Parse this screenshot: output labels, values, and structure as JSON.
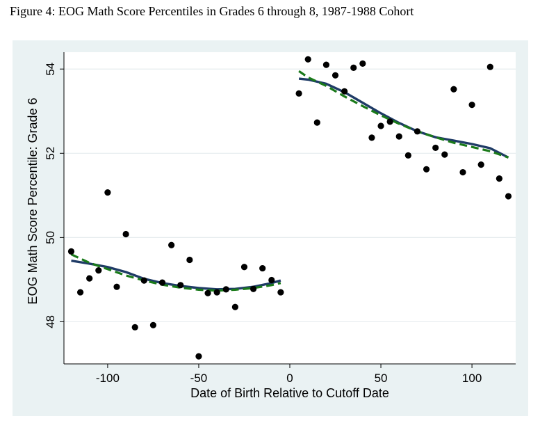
{
  "figure": {
    "title": "Figure 4: EOG Math Score Percentiles in Grades 6 through 8, 1987-1988 Cohort"
  },
  "chart_data": {
    "type": "scatter",
    "xlabel": "Date of Birth Relative to Cutoff Date",
    "ylabel": "EOG Math Score Percentile: Grade 6",
    "xlim": [
      -124,
      124
    ],
    "ylim": [
      47.0,
      54.4
    ],
    "xticks": [
      -100,
      -50,
      0,
      50,
      100
    ],
    "yticks": [
      48,
      50,
      52,
      54
    ],
    "grid": "horizontal",
    "colors": {
      "points": "#000000",
      "solid_fit": "#1f3b66",
      "dashed_fit": "#1a7a1a",
      "background": "#eaf2f3",
      "plot_area": "#ffffff"
    },
    "points": [
      {
        "x": -120,
        "y": 49.67
      },
      {
        "x": -115,
        "y": 48.7
      },
      {
        "x": -110,
        "y": 49.03
      },
      {
        "x": -105,
        "y": 49.22
      },
      {
        "x": -100,
        "y": 51.07
      },
      {
        "x": -95,
        "y": 48.83
      },
      {
        "x": -90,
        "y": 50.08
      },
      {
        "x": -85,
        "y": 47.87
      },
      {
        "x": -80,
        "y": 48.98
      },
      {
        "x": -75,
        "y": 47.92
      },
      {
        "x": -70,
        "y": 48.93
      },
      {
        "x": -65,
        "y": 49.82
      },
      {
        "x": -60,
        "y": 48.87
      },
      {
        "x": -55,
        "y": 49.47
      },
      {
        "x": -50,
        "y": 47.18
      },
      {
        "x": -45,
        "y": 48.68
      },
      {
        "x": -40,
        "y": 48.7
      },
      {
        "x": -35,
        "y": 48.77
      },
      {
        "x": -30,
        "y": 48.35
      },
      {
        "x": -25,
        "y": 49.3
      },
      {
        "x": -20,
        "y": 48.78
      },
      {
        "x": -15,
        "y": 49.27
      },
      {
        "x": -10,
        "y": 48.99
      },
      {
        "x": -5,
        "y": 48.7
      },
      {
        "x": 5,
        "y": 53.42
      },
      {
        "x": 10,
        "y": 54.23
      },
      {
        "x": 15,
        "y": 52.73
      },
      {
        "x": 20,
        "y": 54.1
      },
      {
        "x": 25,
        "y": 53.85
      },
      {
        "x": 30,
        "y": 53.47
      },
      {
        "x": 35,
        "y": 54.03
      },
      {
        "x": 40,
        "y": 54.13
      },
      {
        "x": 45,
        "y": 52.37
      },
      {
        "x": 50,
        "y": 52.65
      },
      {
        "x": 55,
        "y": 52.75
      },
      {
        "x": 60,
        "y": 52.4
      },
      {
        "x": 65,
        "y": 51.95
      },
      {
        "x": 70,
        "y": 52.52
      },
      {
        "x": 75,
        "y": 51.62
      },
      {
        "x": 80,
        "y": 52.13
      },
      {
        "x": 85,
        "y": 51.97
      },
      {
        "x": 90,
        "y": 53.52
      },
      {
        "x": 95,
        "y": 51.55
      },
      {
        "x": 100,
        "y": 53.15
      },
      {
        "x": 105,
        "y": 51.73
      },
      {
        "x": 110,
        "y": 54.05
      },
      {
        "x": 115,
        "y": 51.4
      },
      {
        "x": 120,
        "y": 50.98
      }
    ],
    "fits": [
      {
        "style": "solid",
        "segment": "left",
        "x": [
          -120,
          -110,
          -100,
          -90,
          -80,
          -70,
          -60,
          -50,
          -40,
          -30,
          -20,
          -10,
          -5
        ],
        "y": [
          49.45,
          49.38,
          49.3,
          49.18,
          49.02,
          48.92,
          48.85,
          48.8,
          48.77,
          48.78,
          48.83,
          48.92,
          48.98
        ]
      },
      {
        "style": "dashed",
        "segment": "left",
        "x": [
          -120,
          -110,
          -100,
          -90,
          -80,
          -70,
          -60,
          -50,
          -40,
          -30,
          -20,
          -10,
          -5
        ],
        "y": [
          49.6,
          49.4,
          49.25,
          49.1,
          48.98,
          48.88,
          48.81,
          48.76,
          48.74,
          48.76,
          48.8,
          48.87,
          48.92
        ]
      },
      {
        "style": "solid",
        "segment": "right",
        "x": [
          5,
          10,
          20,
          30,
          40,
          50,
          60,
          70,
          80,
          90,
          100,
          110,
          120
        ],
        "y": [
          53.77,
          53.75,
          53.65,
          53.45,
          53.2,
          52.95,
          52.72,
          52.52,
          52.38,
          52.3,
          52.22,
          52.12,
          51.9
        ]
      },
      {
        "style": "dashed",
        "segment": "right",
        "x": [
          5,
          10,
          20,
          30,
          40,
          50,
          60,
          70,
          80,
          90,
          100,
          110,
          120
        ],
        "y": [
          53.95,
          53.8,
          53.6,
          53.35,
          53.12,
          52.9,
          52.7,
          52.52,
          52.38,
          52.25,
          52.15,
          52.05,
          51.9
        ]
      }
    ]
  }
}
